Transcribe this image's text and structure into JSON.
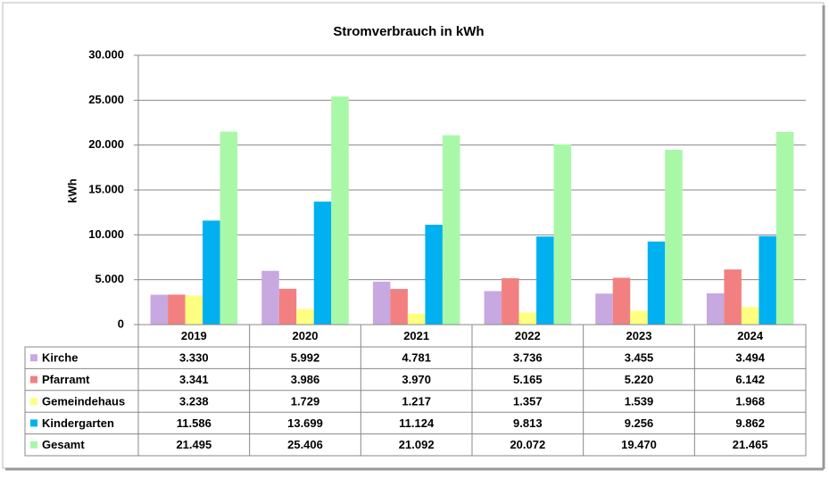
{
  "chart_data": {
    "type": "bar",
    "title": "Stromverbrauch in kWh",
    "y_label": "kWh",
    "categories": [
      "2019",
      "2020",
      "2021",
      "2022",
      "2023",
      "2024"
    ],
    "ylim": [
      0,
      30000
    ],
    "yticks": [
      0,
      {
        "value": 5000,
        "label": "5.000"
      },
      {
        "value": 10000,
        "label": "10.000"
      },
      {
        "value": 15000,
        "label": "15.000"
      },
      {
        "value": 20000,
        "label": "20.000"
      },
      {
        "value": 25000,
        "label": "25.000"
      },
      {
        "value": 30000,
        "label": "30.000"
      }
    ],
    "grid": true,
    "series": [
      {
        "name": "Kirche",
        "color": "#c8a8e0",
        "values": [
          3330,
          5992,
          4781,
          3736,
          3455,
          3494
        ],
        "value_labels": [
          "3.330",
          "5.992",
          "4.781",
          "3.736",
          "3.455",
          "3.494"
        ]
      },
      {
        "name": "Pfarramt",
        "color": "#f28080",
        "values": [
          3341,
          3986,
          3970,
          5165,
          5220,
          6142
        ],
        "value_labels": [
          "3.341",
          "3.986",
          "3.970",
          "5.165",
          "5.220",
          "6.142"
        ]
      },
      {
        "name": "Gemeindehaus",
        "color": "#ffff80",
        "values": [
          3238,
          1729,
          1217,
          1357,
          1539,
          1968
        ],
        "value_labels": [
          "3.238",
          "1.729",
          "1.217",
          "1.357",
          "1.539",
          "1.968"
        ]
      },
      {
        "name": "Kindergarten",
        "color": "#00b0f0",
        "values": [
          11586,
          13699,
          11124,
          9813,
          9256,
          9862
        ],
        "value_labels": [
          "11.586",
          "13.699",
          "11.124",
          "9.813",
          "9.256",
          "9.862"
        ]
      },
      {
        "name": "Gesamt",
        "color": "#a8f8a8",
        "values": [
          21495,
          25406,
          21092,
          20072,
          19470,
          21465
        ],
        "value_labels": [
          "21.495",
          "25.406",
          "21.092",
          "20.072",
          "19.470",
          "21.465"
        ]
      }
    ]
  }
}
